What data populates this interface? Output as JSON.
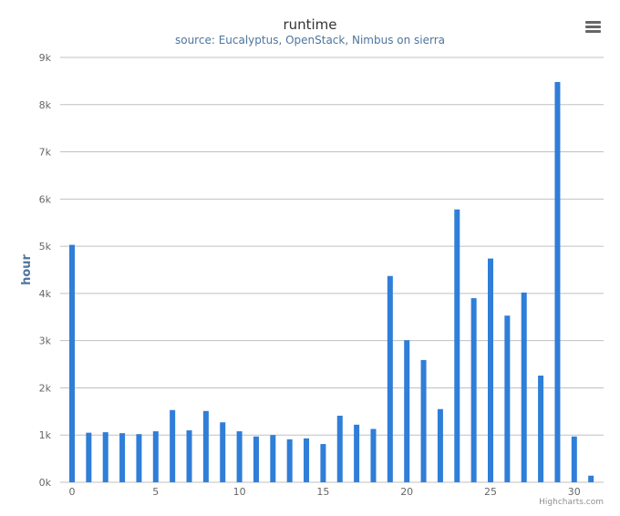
{
  "chart_data": {
    "type": "bar",
    "title": "runtime",
    "subtitle": "source: Eucalyptus, OpenStack, Nimbus on sierra",
    "xlabel": "",
    "ylabel": "hour",
    "x": [
      0,
      1,
      2,
      3,
      4,
      5,
      6,
      7,
      8,
      9,
      10,
      11,
      12,
      13,
      14,
      15,
      16,
      17,
      18,
      19,
      20,
      21,
      22,
      23,
      24,
      25,
      26,
      27,
      28,
      29,
      30,
      31
    ],
    "values": [
      5030,
      1050,
      1060,
      1040,
      1020,
      1080,
      1530,
      1100,
      1510,
      1270,
      1080,
      970,
      1000,
      910,
      930,
      810,
      1410,
      1220,
      1130,
      4370,
      3010,
      2590,
      1550,
      5780,
      3900,
      4740,
      3530,
      4020,
      2260,
      8480,
      970,
      140
    ],
    "xlim": [
      0,
      31
    ],
    "x_ticks": [
      "0",
      "5",
      "10",
      "15",
      "20",
      "25",
      "30"
    ],
    "ylim": [
      0,
      9000
    ],
    "y_ticks": [
      "0k",
      "1k",
      "2k",
      "3k",
      "4k",
      "5k",
      "6k",
      "7k",
      "8k",
      "9k"
    ],
    "grid": true,
    "legend": "none"
  },
  "credits": "Highcharts.com",
  "colors": {
    "bar": "#2f7ed8",
    "subtitle": "#4d759e",
    "ylabel": "#4d759e",
    "grid": "#c0c0c0",
    "menu": "#666666"
  },
  "icons": {
    "menu": "hamburger-menu-icon"
  }
}
